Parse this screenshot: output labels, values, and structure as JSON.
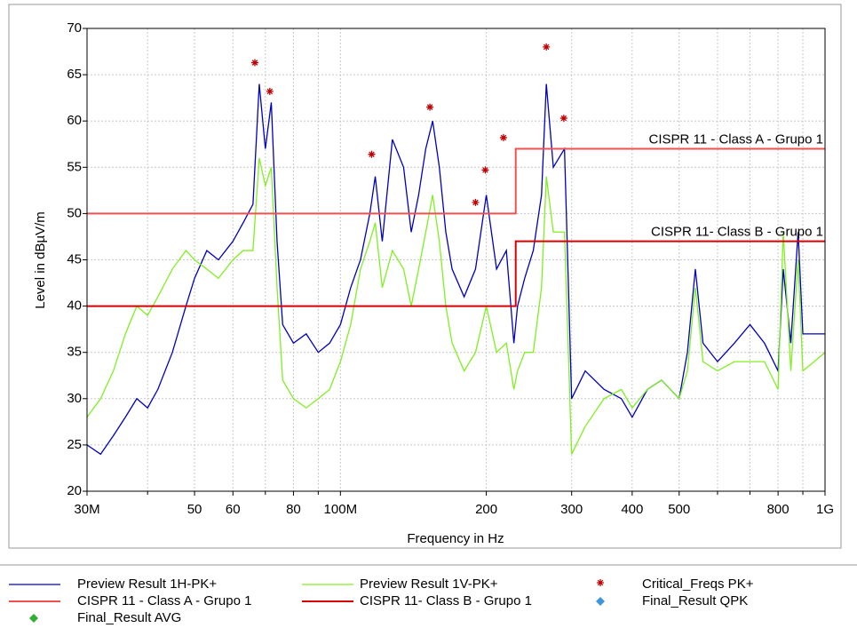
{
  "chart_data": {
    "type": "line",
    "xlabel": "Frequency in Hz",
    "ylabel": "Level in dBµV/m",
    "xscale": "log",
    "xlim": [
      30000000,
      1000000000
    ],
    "ylim": [
      20,
      70
    ],
    "yticks": [
      20,
      25,
      30,
      35,
      40,
      45,
      50,
      55,
      60,
      65,
      70
    ],
    "xticks": [
      {
        "value": 30000000,
        "label": "30M"
      },
      {
        "value": 50000000,
        "label": "50"
      },
      {
        "value": 60000000,
        "label": "60"
      },
      {
        "value": 80000000,
        "label": "80"
      },
      {
        "value": 100000000,
        "label": "100M"
      },
      {
        "value": 200000000,
        "label": "200"
      },
      {
        "value": 300000000,
        "label": "300"
      },
      {
        "value": 400000000,
        "label": "400"
      },
      {
        "value": 500000000,
        "label": "500"
      },
      {
        "value": 800000000,
        "label": "800"
      },
      {
        "value": 1000000000,
        "label": "1G"
      }
    ],
    "xminorticks": [
      40000000,
      70000000,
      90000000,
      600000000,
      700000000,
      900000000
    ],
    "grid": true,
    "series": [
      {
        "name": "Preview Result 1H-PK+",
        "kind": "line",
        "color": "#0000c0",
        "x": [
          30000000,
          32000000,
          34000000,
          36000000,
          38000000,
          40000000,
          42000000,
          45000000,
          48000000,
          50000000,
          53000000,
          56000000,
          60000000,
          63000000,
          66000000,
          68000000,
          70000000,
          72000000,
          74000000,
          76000000,
          80000000,
          85000000,
          90000000,
          95000000,
          100000000,
          105000000,
          110000000,
          115000000,
          118000000,
          122000000,
          128000000,
          135000000,
          140000000,
          145000000,
          150000000,
          155000000,
          160000000,
          165000000,
          170000000,
          180000000,
          190000000,
          200000000,
          210000000,
          220000000,
          228000000,
          232000000,
          240000000,
          250000000,
          260000000,
          266000000,
          275000000,
          290000000,
          300000000,
          320000000,
          350000000,
          380000000,
          400000000,
          430000000,
          460000000,
          500000000,
          520000000,
          540000000,
          560000000,
          600000000,
          650000000,
          700000000,
          750000000,
          800000000,
          820000000,
          850000000,
          880000000,
          900000000,
          950000000,
          1000000000
        ],
        "values": [
          25,
          24,
          26,
          28,
          30,
          29,
          31,
          35,
          40,
          43,
          46,
          45,
          47,
          49,
          51,
          64,
          57,
          62,
          47,
          38,
          36,
          37,
          35,
          36,
          38,
          42,
          45,
          50,
          54,
          47,
          58,
          55,
          48,
          52,
          57,
          60,
          55,
          48,
          44,
          41,
          44,
          52,
          44,
          46,
          36,
          40,
          43,
          46,
          52,
          64,
          55,
          57,
          30,
          33,
          31,
          30,
          28,
          31,
          32,
          30,
          35,
          44,
          36,
          34,
          36,
          38,
          36,
          33,
          44,
          36,
          48,
          37,
          37,
          37
        ]
      },
      {
        "name": "Preview Result 1V-PK+",
        "kind": "line",
        "color": "#80f020",
        "x": [
          30000000,
          32000000,
          34000000,
          36000000,
          38000000,
          40000000,
          42000000,
          45000000,
          48000000,
          50000000,
          53000000,
          56000000,
          60000000,
          63000000,
          66000000,
          68000000,
          70000000,
          72000000,
          74000000,
          76000000,
          80000000,
          85000000,
          90000000,
          95000000,
          100000000,
          105000000,
          110000000,
          115000000,
          118000000,
          122000000,
          128000000,
          135000000,
          140000000,
          145000000,
          150000000,
          155000000,
          160000000,
          165000000,
          170000000,
          180000000,
          190000000,
          200000000,
          210000000,
          220000000,
          228000000,
          232000000,
          240000000,
          250000000,
          260000000,
          266000000,
          275000000,
          290000000,
          300000000,
          320000000,
          350000000,
          380000000,
          400000000,
          430000000,
          460000000,
          500000000,
          520000000,
          540000000,
          560000000,
          600000000,
          650000000,
          700000000,
          750000000,
          800000000,
          820000000,
          850000000,
          880000000,
          900000000,
          950000000,
          1000000000
        ],
        "values": [
          28,
          30,
          33,
          37,
          40,
          39,
          41,
          44,
          46,
          45,
          44,
          43,
          45,
          46,
          46,
          56,
          53,
          55,
          42,
          32,
          30,
          29,
          30,
          31,
          34,
          38,
          44,
          47,
          49,
          42,
          46,
          44,
          40,
          44,
          48,
          52,
          47,
          40,
          36,
          33,
          35,
          40,
          35,
          36,
          31,
          33,
          35,
          35,
          42,
          54,
          48,
          48,
          24,
          27,
          30,
          31,
          29,
          31,
          32,
          30,
          33,
          42,
          34,
          33,
          34,
          34,
          34,
          31,
          48,
          33,
          45,
          33,
          34,
          35
        ]
      },
      {
        "name": "Critical_Freqs PK+",
        "kind": "star",
        "color": "#c00000",
        "x": [
          66600000,
          71500000,
          116000000,
          153000000,
          190000000,
          199000000,
          217000000,
          266000000,
          289000000
        ],
        "values": [
          66.3,
          63.2,
          56.4,
          61.5,
          51.2,
          54.7,
          58.2,
          68,
          60.3
        ]
      },
      {
        "name": "CISPR 11 - Class A - Grupo 1",
        "kind": "limit",
        "color": "#f05050",
        "x": [
          30000000,
          230000000,
          230000000,
          1000000000
        ],
        "values": [
          50,
          50,
          57,
          57
        ]
      },
      {
        "name": "CISPR 11-  Class B - Grupo 1",
        "kind": "limit",
        "color": "#d80000",
        "x": [
          30000000,
          230000000,
          230000000,
          1000000000
        ],
        "values": [
          40,
          40,
          47,
          47
        ]
      },
      {
        "name": "Final_Result QPK",
        "kind": "diamond",
        "color": "#3c96dc",
        "x": [],
        "values": []
      },
      {
        "name": "Final_Result AVG",
        "kind": "diamond",
        "color": "#30b030",
        "x": [],
        "values": []
      }
    ]
  }
}
